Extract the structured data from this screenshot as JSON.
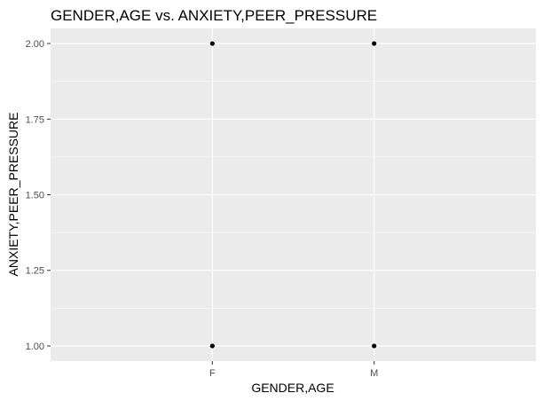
{
  "chart_data": {
    "type": "scatter",
    "title": "GENDER,AGE vs. ANXIETY,PEER_PRESSURE",
    "xlabel": "GENDER,AGE",
    "ylabel": "ANXIETY,PEER_PRESSURE",
    "categories": [
      "F",
      "M"
    ],
    "y_ticks": [
      "1.00",
      "1.25",
      "1.50",
      "1.75",
      "2.00"
    ],
    "ylim": [
      0.95,
      2.05
    ],
    "grid": true,
    "points": [
      {
        "x": "F",
        "y": 2.0
      },
      {
        "x": "F",
        "y": 1.0
      },
      {
        "x": "M",
        "y": 2.0
      },
      {
        "x": "M",
        "y": 1.0
      }
    ],
    "colors": {
      "panel": "#ebebeb",
      "grid_major": "#ffffff",
      "point": "#000000",
      "tick": "#333333"
    }
  }
}
